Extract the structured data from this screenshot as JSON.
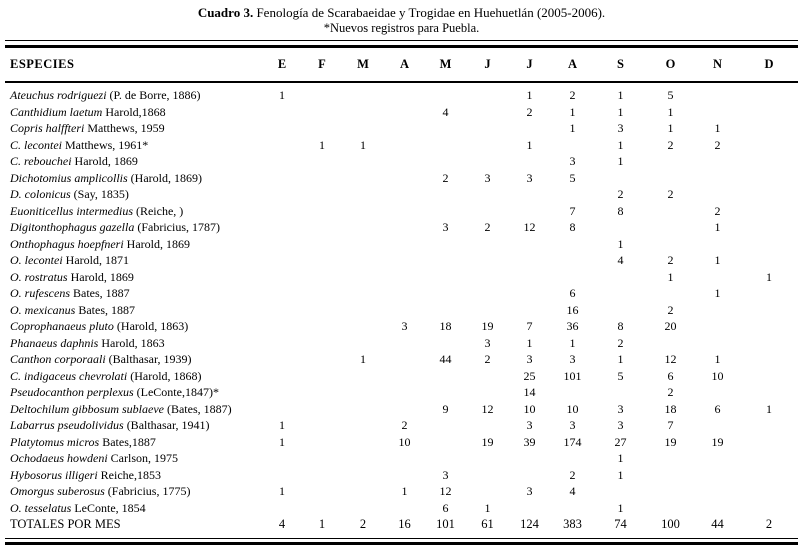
{
  "title": {
    "bold": "Cuadro 3.",
    "rest": "Fenología de Scarabaeidae y Trogidae en Huehuetlán (2005-2006)."
  },
  "subtitle": "*Nuevos registros para Puebla.",
  "table": {
    "species_header": "ESPECIES",
    "month_headers": [
      "E",
      "F",
      "M",
      "A",
      "M",
      "J",
      "J",
      "A",
      "S",
      "O",
      "N",
      "D"
    ],
    "rows": [
      {
        "name": "Ateuchus rodriguezi",
        "author": "(P. de Borre, 1886)",
        "values": [
          "1",
          "",
          "",
          "",
          "",
          "",
          "1",
          "2",
          "1",
          "5",
          "",
          ""
        ]
      },
      {
        "name": "Canthidium laetum",
        "author": "Harold,1868",
        "values": [
          "",
          "",
          "",
          "",
          "4",
          "",
          "2",
          "1",
          "1",
          "1",
          "",
          ""
        ]
      },
      {
        "name": "Copris halffteri",
        "author": "Matthews, 1959",
        "values": [
          "",
          "",
          "",
          "",
          "",
          "",
          "",
          "1",
          "3",
          "1",
          "1",
          ""
        ]
      },
      {
        "name": "C. lecontei",
        "author": "Matthews, 1961*",
        "values": [
          "",
          "1",
          "1",
          "",
          "",
          "",
          "1",
          "",
          "1",
          "2",
          "2",
          ""
        ]
      },
      {
        "name": "C. rebouchei",
        "author": "Harold, 1869",
        "values": [
          "",
          "",
          "",
          "",
          "",
          "",
          "",
          "3",
          "1",
          "",
          "",
          ""
        ]
      },
      {
        "name": "Dichotomius amplicollis",
        "author": "(Harold, 1869)",
        "values": [
          "",
          "",
          "",
          "",
          "2",
          "3",
          "3",
          "5",
          "",
          "",
          "",
          ""
        ]
      },
      {
        "name": "D. colonicus",
        "author": "(Say, 1835)",
        "values": [
          "",
          "",
          "",
          "",
          "",
          "",
          "",
          "",
          "2",
          "2",
          "",
          ""
        ]
      },
      {
        "name": "Euoniticellus intermedius",
        "author": "(Reiche, )",
        "values": [
          "",
          "",
          "",
          "",
          "",
          "",
          "",
          "7",
          "8",
          "",
          "2",
          ""
        ]
      },
      {
        "name": "Digitonthophagus gazella",
        "author": "(Fabricius, 1787)",
        "values": [
          "",
          "",
          "",
          "",
          "3",
          "2",
          "12",
          "8",
          "",
          "",
          "1",
          ""
        ]
      },
      {
        "name": "Onthophagus hoepfneri",
        "author": "Harold, 1869",
        "values": [
          "",
          "",
          "",
          "",
          "",
          "",
          "",
          "",
          "1",
          "",
          "",
          ""
        ]
      },
      {
        "name": "O. lecontei",
        "author": "Harold, 1871",
        "values": [
          "",
          "",
          "",
          "",
          "",
          "",
          "",
          "",
          "4",
          "2",
          "1",
          ""
        ]
      },
      {
        "name": "O. rostratus",
        "author": "Harold, 1869",
        "values": [
          "",
          "",
          "",
          "",
          "",
          "",
          "",
          "",
          "",
          "1",
          "",
          "1"
        ]
      },
      {
        "name": "O. rufescens",
        "author": "Bates, 1887",
        "values": [
          "",
          "",
          "",
          "",
          "",
          "",
          "",
          "6",
          "",
          "",
          "1",
          ""
        ]
      },
      {
        "name": "O. mexicanus",
        "author": "Bates, 1887",
        "values": [
          "",
          "",
          "",
          "",
          "",
          "",
          "",
          "16",
          "",
          "2",
          "",
          ""
        ]
      },
      {
        "name": "Coprophanaeus pluto",
        "author": "(Harold, 1863)",
        "values": [
          "",
          "",
          "",
          "3",
          "18",
          "19",
          "7",
          "36",
          "8",
          "20",
          "",
          ""
        ]
      },
      {
        "name": "Phanaeus daphnis",
        "author": "Harold, 1863",
        "values": [
          "",
          "",
          "",
          "",
          "",
          "3",
          "1",
          "1",
          "2",
          "",
          "",
          ""
        ]
      },
      {
        "name": "Canthon corporaali",
        "author": "(Balthasar, 1939)",
        "values": [
          "",
          "",
          "1",
          "",
          "44",
          "2",
          "3",
          "3",
          "1",
          "12",
          "1",
          ""
        ]
      },
      {
        "name": "C. indigaceus chevrolati",
        "author": "(Harold, 1868)",
        "values": [
          "",
          "",
          "",
          "",
          "",
          "",
          "25",
          "101",
          "5",
          "6",
          "10",
          ""
        ]
      },
      {
        "name": "Pseudocanthon perplexus",
        "author": "(LeConte,1847)*",
        "values": [
          "",
          "",
          "",
          "",
          "",
          "",
          "14",
          "",
          "",
          "2",
          "",
          ""
        ]
      },
      {
        "name": "Deltochilum gibbosum sublaeve",
        "author": "(Bates, 1887)",
        "values": [
          "",
          "",
          "",
          "",
          "9",
          "12",
          "10",
          "10",
          "3",
          "18",
          "6",
          "1"
        ]
      },
      {
        "name": "Labarrus pseudolividus",
        "author": "(Balthasar, 1941)",
        "values": [
          "1",
          "",
          "",
          "2",
          "",
          "",
          "3",
          "3",
          "3",
          "7",
          "",
          ""
        ]
      },
      {
        "name": "Platytomus micros",
        "author": "Bates,1887",
        "values": [
          "1",
          "",
          "",
          "10",
          "",
          "19",
          "39",
          "174",
          "27",
          "19",
          "19",
          ""
        ]
      },
      {
        "name": "Ochodaeus howdeni",
        "author": "Carlson, 1975",
        "values": [
          "",
          "",
          "",
          "",
          "",
          "",
          "",
          "",
          "1",
          "",
          "",
          ""
        ]
      },
      {
        "name": "Hybosorus illigeri",
        "author": "Reiche,1853",
        "values": [
          "",
          "",
          "",
          "",
          "3",
          "",
          "",
          "2",
          "1",
          "",
          "",
          ""
        ]
      },
      {
        "name": "Omorgus suberosus",
        "author": "(Fabricius, 1775)",
        "values": [
          "1",
          "",
          "",
          "1",
          "12",
          "",
          "3",
          "4",
          "",
          "",
          "",
          ""
        ]
      },
      {
        "name": "O. tesselatus",
        "author": "LeConte, 1854",
        "values": [
          "",
          "",
          "",
          "",
          "6",
          "1",
          "",
          "",
          "1",
          "",
          "",
          ""
        ]
      }
    ],
    "totals": {
      "label": "TOTALES POR MES",
      "values": [
        "4",
        "1",
        "2",
        "16",
        "101",
        "61",
        "124",
        "383",
        "74",
        "100",
        "44",
        "2"
      ]
    }
  }
}
